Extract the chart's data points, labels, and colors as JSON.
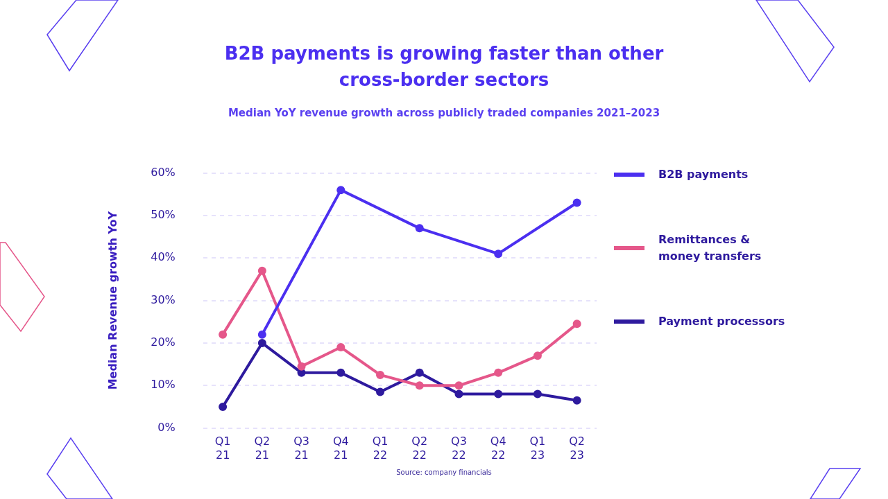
{
  "chart_data": {
    "type": "line",
    "title": "B2B payments is growing faster than other cross-border sectors",
    "subtitle": "Median YoY revenue growth across publicly traded companies 2021–2023",
    "ylabel": "Median Revenue growth YoY",
    "categories": [
      "Q1 21",
      "Q2 21",
      "Q3 21",
      "Q4 21",
      "Q1 22",
      "Q2 22",
      "Q3 22",
      "Q4 22",
      "Q1 23",
      "Q2 23"
    ],
    "series": [
      {
        "name": "B2B payments",
        "color": "#4b2ff0",
        "values": [
          null,
          22,
          null,
          56,
          null,
          47,
          null,
          41,
          null,
          53
        ]
      },
      {
        "name": "Remittances & money transfers",
        "color": "#e5578a",
        "values": [
          22,
          37,
          14.5,
          19,
          12.5,
          10,
          10,
          13,
          17,
          24.5
        ]
      },
      {
        "name": "Payment processors",
        "color": "#2e1a9e",
        "values": [
          5,
          20,
          13,
          13,
          8.5,
          13,
          8,
          8,
          8,
          6.5
        ]
      }
    ],
    "ylim": [
      0,
      60
    ],
    "yticks": [
      {
        "value": 0,
        "label": "0%"
      },
      {
        "value": 10,
        "label": "10%"
      },
      {
        "value": 20,
        "label": "20%"
      },
      {
        "value": 30,
        "label": "30%"
      },
      {
        "value": 40,
        "label": "40%"
      },
      {
        "value": 50,
        "label": "50%"
      },
      {
        "value": 60,
        "label": "60%"
      }
    ],
    "grid": "y",
    "legend": "right",
    "marker": "circle",
    "line_style": "solid",
    "annotations": [
      "Source: company financials"
    ]
  }
}
